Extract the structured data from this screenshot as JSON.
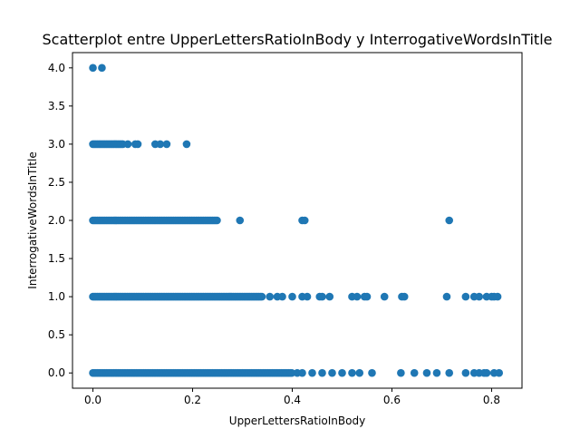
{
  "chart_data": {
    "type": "scatter",
    "title": "Scatterplot entre UpperLettersRatioInBody y InterrogativeWordsInTitle",
    "xlabel": "UpperLettersRatioInBody",
    "ylabel": "InterrogativeWordsInTitle",
    "xlim": [
      -0.041,
      0.861
    ],
    "ylim": [
      -0.2,
      4.2
    ],
    "xticks": [
      0.0,
      0.2,
      0.4,
      0.6,
      0.8
    ],
    "xtick_labels": [
      "0.0",
      "0.2",
      "0.4",
      "0.6",
      "0.8"
    ],
    "yticks": [
      0.0,
      0.5,
      1.0,
      1.5,
      2.0,
      2.5,
      3.0,
      3.5,
      4.0
    ],
    "ytick_labels": [
      "0.0",
      "0.5",
      "1.0",
      "1.5",
      "2.0",
      "2.5",
      "3.0",
      "3.5",
      "4.0"
    ],
    "grid": false,
    "marker_color": "#1f77b4",
    "series": [
      {
        "points": [
          {
            "y": 4,
            "x": [
              0.0,
              0.018
            ]
          },
          {
            "y": 3,
            "range": [
              0.0,
              0.06
            ],
            "x": [
              0.07,
              0.085,
              0.09,
              0.125,
              0.135,
              0.148,
              0.188
            ]
          },
          {
            "y": 2,
            "range": [
              0.0,
              0.25
            ],
            "x": [
              0.295,
              0.42,
              0.425,
              0.715
            ]
          },
          {
            "y": 1,
            "range": [
              0.0,
              0.34
            ],
            "x": [
              0.355,
              0.37,
              0.38,
              0.4,
              0.42,
              0.43,
              0.455,
              0.46,
              0.475,
              0.52,
              0.53,
              0.545,
              0.55,
              0.585,
              0.62,
              0.625,
              0.71,
              0.748,
              0.765,
              0.775,
              0.79,
              0.8,
              0.805,
              0.812
            ]
          },
          {
            "y": 0,
            "range": [
              0.0,
              0.4
            ],
            "x": [
              0.41,
              0.42,
              0.44,
              0.46,
              0.48,
              0.5,
              0.52,
              0.535,
              0.56,
              0.618,
              0.645,
              0.67,
              0.69,
              0.715,
              0.748,
              0.765,
              0.775,
              0.785,
              0.79,
              0.805,
              0.815
            ]
          }
        ]
      }
    ]
  }
}
